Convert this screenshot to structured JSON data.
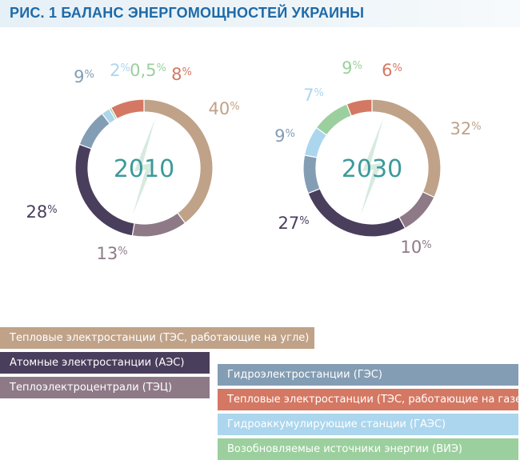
{
  "title": "РИС. 1 БАЛАНС ЭНЕРГОМОЩНОСТЕЙ УКРАИНЫ",
  "chart_data": [
    {
      "type": "pie",
      "donut": true,
      "center_label": "2010",
      "slices": [
        {
          "category": "Тепловые электростанции (ТЭС, работающие на угле)",
          "value": 40,
          "number": "40",
          "unit": "%",
          "color": "#c0a288"
        },
        {
          "category": "Теплоэлектроцентрали (ТЭЦ)",
          "value": 13,
          "number": "13",
          "unit": "%",
          "color": "#8e7a87"
        },
        {
          "category": "Атомные электростанции (АЭС)",
          "value": 28,
          "number": "28",
          "unit": "%",
          "color": "#4a3e5d"
        },
        {
          "category": "Гидроэлектростанции (ГЭС)",
          "value": 9,
          "number": "9",
          "unit": "%",
          "color": "#839db4"
        },
        {
          "category": "Гидроаккумулирующие станции (ГАЭС)",
          "value": 2,
          "number": "2",
          "unit": "%",
          "color": "#abd6ee"
        },
        {
          "category": "Возобновляемые источники энергии (ВИЭ)",
          "value": 0.5,
          "number": "0,5",
          "unit": "%",
          "color": "#9ccf9e"
        },
        {
          "category": "Тепловые электростанции (ТЭС, работающие на газе)",
          "value": 8,
          "number": "8",
          "unit": "%",
          "color": "#d47863"
        }
      ]
    },
    {
      "type": "pie",
      "donut": true,
      "center_label": "2030",
      "slices": [
        {
          "category": "Тепловые электростанции (ТЭС, работающие на угле)",
          "value": 32,
          "number": "32",
          "unit": "%",
          "color": "#c0a288"
        },
        {
          "category": "Теплоэлектроцентрали (ТЭЦ)",
          "value": 10,
          "number": "10",
          "unit": "%",
          "color": "#8e7a87"
        },
        {
          "category": "Атомные электростанции (АЭС)",
          "value": 27,
          "number": "27",
          "unit": "%",
          "color": "#4a3e5d"
        },
        {
          "category": "Гидроэлектростанции (ГЭС)",
          "value": 9,
          "number": "9",
          "unit": "%",
          "color": "#839db4"
        },
        {
          "category": "Гидроаккумулирующие станции (ГАЭС)",
          "value": 7,
          "number": "7",
          "unit": "%",
          "color": "#abd6ee"
        },
        {
          "category": "Возобновляемые источники энергии (ВИЭ)",
          "value": 9,
          "number": "9",
          "unit": "%",
          "color": "#9ccf9e"
        },
        {
          "category": "Тепловые электростанции (ТЭС, работающие на газе)",
          "value": 6,
          "number": "6",
          "unit": "%",
          "color": "#d47863"
        }
      ]
    }
  ],
  "legend": [
    {
      "label": "Тепловые электростанции (ТЭС, работающие на угле)",
      "color": "#c0a288"
    },
    {
      "label": "Атомные электростанции (АЭС)",
      "color": "#4a3e5d"
    },
    {
      "label": "Теплоэлектроцентрали (ТЭЦ)",
      "color": "#8e7a87"
    },
    {
      "label": "Гидроэлектростанции (ГЭС)",
      "color": "#839db4"
    },
    {
      "label": "Тепловые электростанции (ТЭС, работающие на газе)",
      "color": "#d47863"
    },
    {
      "label": "Гидроаккумулирующие станции (ГАЭС)",
      "color": "#abd6ee"
    },
    {
      "label": "Возобновляемые источники энергии (ВИЭ)",
      "color": "#9ccf9e"
    }
  ]
}
